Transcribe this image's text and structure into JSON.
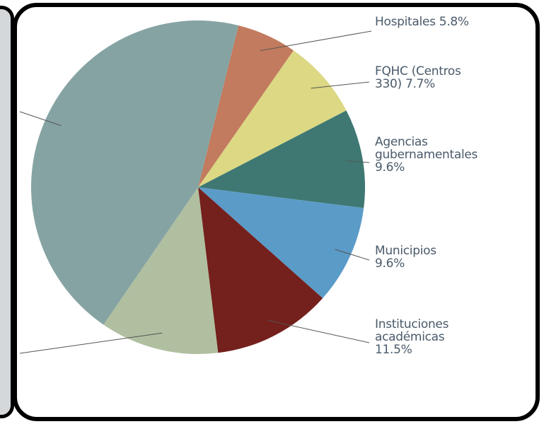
{
  "chart_data": {
    "type": "pie",
    "categories": [
      "Hospitales",
      "FQHC (Centros 330)",
      "Agencias gubernamentales",
      "Municipios",
      "Instituciones académicas",
      null,
      null
    ],
    "values": [
      5.8,
      7.7,
      9.6,
      9.6,
      11.5,
      11.5,
      44.3
    ],
    "value_labels": [
      "5.8%",
      "7.7%",
      "9.6%",
      "9.6%",
      "11.5%",
      null,
      null
    ],
    "colors": [
      "#c27b5e",
      "#dcd884",
      "#3f7873",
      "#5b9bc8",
      "#74201c",
      "#b0bfa0",
      "#86a3a3"
    ]
  }
}
